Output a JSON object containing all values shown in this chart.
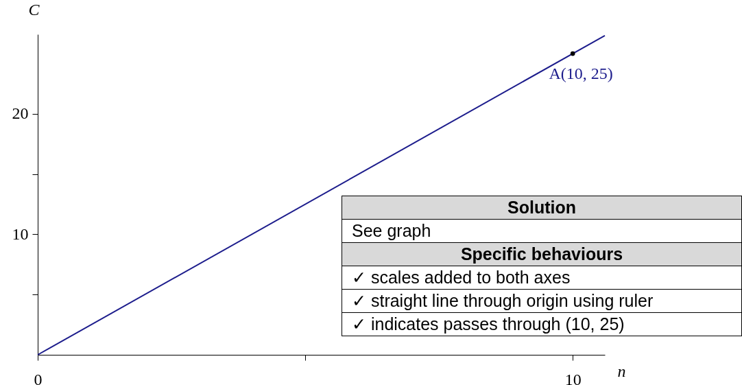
{
  "chart_data": {
    "type": "line",
    "xlabel": "n",
    "ylabel": "C",
    "series": [
      {
        "type": "line",
        "color": "#1c1c8c",
        "x": [
          0,
          10.6
        ],
        "values": [
          0,
          26.5
        ]
      },
      {
        "type": "scatter",
        "color": "#000000",
        "x": [
          10
        ],
        "values": [
          25
        ]
      }
    ],
    "xlim": [
      0,
      10.6
    ],
    "ylim": [
      0,
      26.6
    ],
    "xticks": [
      0,
      {
        "value": 5,
        "label": null
      },
      10
    ],
    "yticks": [
      {
        "value": 5,
        "label": null
      },
      10,
      {
        "value": 15,
        "label": null
      },
      20
    ],
    "grid": false,
    "annotations": [
      {
        "text": "A(10, 25)",
        "x": 10,
        "y": 25
      },
      "Solution",
      "See graph",
      "Specific behaviours",
      "✓ scales added to both axes",
      "✓ straight line through origin using ruler",
      "✓ indicates passes through (10, 25)"
    ]
  }
}
